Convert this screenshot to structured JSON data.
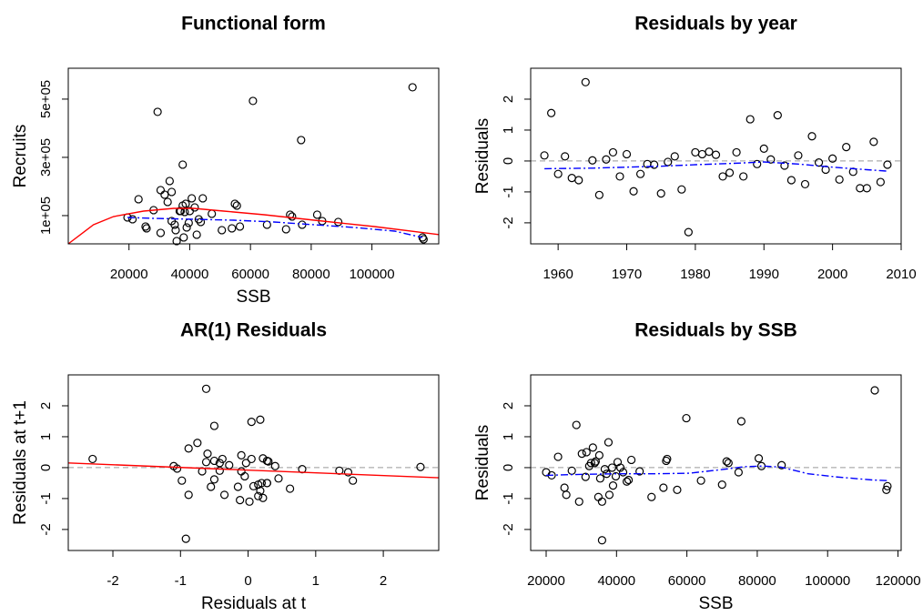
{
  "chart_data": [
    {
      "type": "scatter",
      "title": "Functional form",
      "x_label": "SSB",
      "y_label": "Recruits",
      "xlim": [
        0,
        122000
      ],
      "ylim": [
        3000,
        606000
      ],
      "xticks": [
        20000,
        40000,
        60000,
        80000,
        100000
      ],
      "yticks": [
        {
          "value": 100000,
          "label": "1e+05"
        },
        {
          "value": 300000,
          "label": "3e+05"
        },
        {
          "value": 500000,
          "label": "5e+05"
        }
      ],
      "series": [
        {
          "kind": "points",
          "color": "#000000",
          "x": [
            19500,
            21157,
            23140,
            25453,
            25784,
            28097,
            29419,
            30411,
            30411,
            31733,
            32724,
            33385,
            34046,
            34046,
            35038,
            35369,
            35699,
            36691,
            37021,
            37682,
            37682,
            38013,
            38343,
            38674,
            39004,
            39665,
            39996,
            40657,
            41648,
            42309,
            42970,
            43631,
            44292,
            47267,
            50572,
            53877,
            54868,
            55529,
            56521,
            60817,
            65444,
            71724,
            73046,
            73707,
            76681,
            77012,
            81970,
            83622,
            88910,
            113367,
            116672,
            117003
          ],
          "values": [
            93750,
            87500,
            156250,
            62500,
            56250,
            118750,
            456250,
            40625,
            187500,
            171875,
            146875,
            218750,
            181250,
            81250,
            68750,
            50000,
            12500,
            115625,
            115625,
            275000,
            134375,
            25000,
            112500,
            140625,
            59375,
            75000,
            115625,
            159375,
            128125,
            34375,
            87500,
            78125,
            159375,
            106250,
            50000,
            56250,
            140625,
            134375,
            62500,
            493750,
            68750,
            53125,
            103125,
            96875,
            359375,
            68750,
            103125,
            81250,
            78125,
            540625,
            25000,
            18750
          ]
        },
        {
          "kind": "line",
          "color": "#ff0000",
          "linestyle": "solid",
          "x": [
            0,
            8300,
            14900,
            24800,
            34700,
            41300,
            51200,
            64500,
            81000,
            100800,
            122000
          ],
          "values": [
            3125,
            68750,
            96875,
            115625,
            125000,
            125000,
            115625,
            103125,
            84375,
            62500,
            35000
          ]
        },
        {
          "kind": "line",
          "color": "#0000ff",
          "linestyle": "dashdot",
          "x": [
            19500,
            28097,
            41317,
            54538,
            67758,
            80977,
            94197,
            107417,
            116672
          ],
          "values": [
            93750,
            90625,
            87500,
            84375,
            78125,
            68750,
            59375,
            46875,
            25000
          ]
        }
      ]
    },
    {
      "type": "scatter",
      "title": "Residuals by year",
      "y_label": "Residuals",
      "xlim": [
        1956,
        2010
      ],
      "ylim": [
        -2.68,
        3.0
      ],
      "xticks": [
        1960,
        1970,
        1980,
        1990,
        2000,
        2010
      ],
      "yticks": [
        -2,
        -1,
        0,
        1,
        2
      ],
      "reference_line": {
        "value": 0,
        "color": "#999999"
      },
      "series": [
        {
          "kind": "points",
          "color": "#000000",
          "x": [
            1958,
            1959,
            1960,
            1961,
            1962,
            1963,
            1964,
            1965,
            1966,
            1967,
            1968,
            1969,
            1970,
            1971,
            1972,
            1973,
            1974,
            1975,
            1976,
            1977,
            1978,
            1979,
            1980,
            1981,
            1982,
            1983,
            1984,
            1985,
            1986,
            1987,
            1988,
            1989,
            1990,
            1991,
            1992,
            1993,
            1994,
            1995,
            1996,
            1997,
            1998,
            1999,
            2000,
            2001,
            2002,
            2003,
            2004,
            2005,
            2006,
            2007,
            2008
          ],
          "values": [
            0.18,
            1.55,
            -0.42,
            0.15,
            -0.55,
            -0.62,
            2.55,
            0.02,
            -1.1,
            0.05,
            0.28,
            -0.5,
            0.22,
            -0.98,
            -0.42,
            -0.1,
            -0.12,
            -1.05,
            -0.03,
            0.15,
            -0.92,
            -2.3,
            0.28,
            0.22,
            0.3,
            0.2,
            -0.5,
            -0.38,
            0.28,
            -0.5,
            1.35,
            -0.1,
            0.4,
            0.05,
            1.48,
            -0.15,
            -0.62,
            0.18,
            -0.75,
            0.8,
            -0.05,
            -0.28,
            0.08,
            -0.6,
            0.45,
            -0.35,
            -0.88,
            -0.88,
            0.62,
            -0.68,
            -0.12
          ]
        },
        {
          "kind": "line",
          "color": "#0000ff",
          "linestyle": "dashdot",
          "x": [
            1958,
            1965,
            1970,
            1975,
            1980,
            1985,
            1990,
            1995,
            2000,
            2005,
            2008
          ],
          "values": [
            -0.25,
            -0.23,
            -0.2,
            -0.17,
            -0.12,
            -0.08,
            -0.03,
            -0.1,
            -0.2,
            -0.28,
            -0.33
          ]
        }
      ]
    },
    {
      "type": "scatter",
      "title": "AR(1) Residuals",
      "x_label": "Residuals at t",
      "y_label": "Residuals at t+1",
      "xlim": [
        -2.66,
        2.82
      ],
      "ylim": [
        -2.68,
        3.0
      ],
      "xticks": [
        -2,
        -1,
        0,
        1,
        2
      ],
      "yticks": [
        -2,
        -1,
        0,
        1,
        2
      ],
      "reference_line": {
        "value": 0,
        "color": "#999999"
      },
      "series": [
        {
          "kind": "points",
          "color": "#000000",
          "x": [
            0.18,
            1.55,
            -0.42,
            0.15,
            -0.55,
            -0.62,
            2.55,
            0.02,
            -1.1,
            0.05,
            0.28,
            -0.5,
            0.22,
            -0.98,
            -0.42,
            -0.1,
            -0.12,
            -1.05,
            -0.03,
            0.15,
            -0.92,
            -2.3,
            0.28,
            0.22,
            0.3,
            0.2,
            -0.5,
            -0.38,
            0.28,
            -0.5,
            1.35,
            -0.1,
            0.4,
            0.05,
            1.48,
            -0.15,
            -0.62,
            0.18,
            -0.75,
            0.8,
            -0.05,
            -0.28,
            0.08,
            -0.6,
            0.45,
            -0.35,
            -0.88,
            -0.88,
            0.62,
            -0.68
          ],
          "values": [
            1.55,
            -0.42,
            0.15,
            -0.55,
            -0.62,
            2.55,
            0.02,
            -1.1,
            0.05,
            0.28,
            -0.5,
            0.22,
            -0.98,
            -0.42,
            -0.1,
            -0.12,
            -1.05,
            -0.03,
            0.15,
            -0.92,
            -2.3,
            0.28,
            0.22,
            0.3,
            0.2,
            -0.5,
            -0.38,
            0.28,
            -0.5,
            1.35,
            -0.1,
            0.4,
            0.05,
            1.48,
            -0.15,
            -0.62,
            0.18,
            -0.75,
            0.8,
            -0.05,
            -0.28,
            0.08,
            -0.6,
            0.45,
            -0.35,
            -0.88,
            -0.88,
            0.62,
            -0.68,
            -0.12
          ]
        },
        {
          "kind": "line",
          "color": "#ff0000",
          "linestyle": "solid",
          "x": [
            -2.66,
            2.82
          ],
          "values": [
            0.15,
            -0.33
          ]
        }
      ]
    },
    {
      "type": "scatter",
      "title": "Residuals by SSB",
      "x_label": "SSB",
      "y_label": "Residuals",
      "xlim": [
        15600,
        120900
      ],
      "ylim": [
        -2.68,
        3.0
      ],
      "xticks": [
        20000,
        40000,
        60000,
        80000,
        100000,
        120000
      ],
      "yticks": [
        -2,
        -1,
        0,
        1,
        2
      ],
      "reference_line": {
        "value": 0,
        "color": "#999999"
      },
      "series": [
        {
          "kind": "points",
          "color": "#000000",
          "x": [
            20000,
            21560,
            23385,
            25208,
            25729,
            27292,
            28594,
            29375,
            30156,
            31198,
            31458,
            32240,
            32760,
            33281,
            33802,
            34063,
            34844,
            35104,
            35365,
            35885,
            35885,
            36667,
            37188,
            37708,
            37969,
            38750,
            39010,
            39792,
            40313,
            41094,
            41875,
            42917,
            43438,
            44219,
            46563,
            49948,
            53333,
            54115,
            54375,
            57240,
            59844,
            64010,
            70000,
            71302,
            71823,
            74688,
            75469,
            80417,
            81198,
            86927,
            113400,
            117000,
            116700
          ],
          "values": [
            -0.15,
            -0.25,
            0.35,
            -0.65,
            -0.88,
            -0.1,
            1.38,
            -1.1,
            0.45,
            -0.3,
            0.5,
            0.05,
            0.15,
            0.65,
            0.15,
            0.2,
            -0.95,
            0.4,
            -0.35,
            -1.1,
            -2.35,
            -0.05,
            -0.2,
            0.82,
            -0.88,
            0,
            -0.58,
            -0.28,
            0.18,
            0,
            -0.15,
            -0.45,
            -0.4,
            0.25,
            -0.12,
            -0.95,
            -0.65,
            0.22,
            0.28,
            -0.72,
            1.6,
            -0.42,
            -0.55,
            0.2,
            0.15,
            -0.15,
            1.5,
            0.3,
            0.05,
            0.08,
            2.5,
            -0.6,
            -0.72
          ]
        },
        {
          "kind": "line",
          "color": "#0000ff",
          "linestyle": "dashdot",
          "x": [
            20000,
            29375,
            39792,
            50208,
            60625,
            71042,
            76250,
            81458,
            86667,
            94479,
            102292,
            112708,
            117000
          ],
          "values": [
            -0.25,
            -0.22,
            -0.2,
            -0.2,
            -0.18,
            -0.05,
            0.03,
            0.05,
            0.02,
            -0.2,
            -0.3,
            -0.4,
            -0.42
          ]
        }
      ]
    }
  ]
}
